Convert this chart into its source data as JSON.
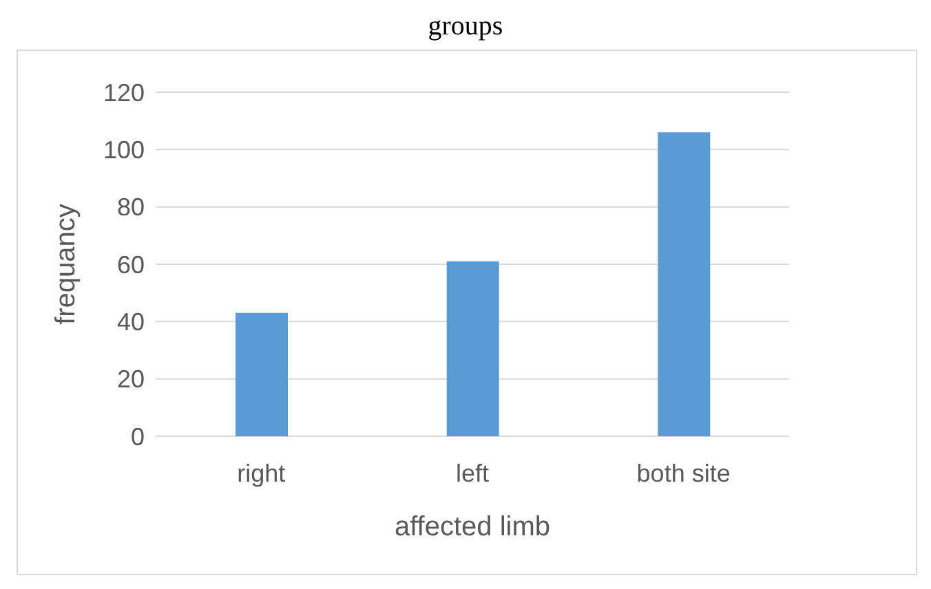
{
  "chart_data": {
    "type": "bar",
    "title": "groups",
    "xlabel": "affected limb",
    "ylabel": "frequancy",
    "categories": [
      "right",
      "left",
      "both site"
    ],
    "values": [
      43,
      61,
      106
    ],
    "color": "#5b9bd5",
    "ylim": [
      0,
      120
    ],
    "yticks": [
      0,
      20,
      40,
      60,
      80,
      100,
      120
    ],
    "grid": "y"
  }
}
